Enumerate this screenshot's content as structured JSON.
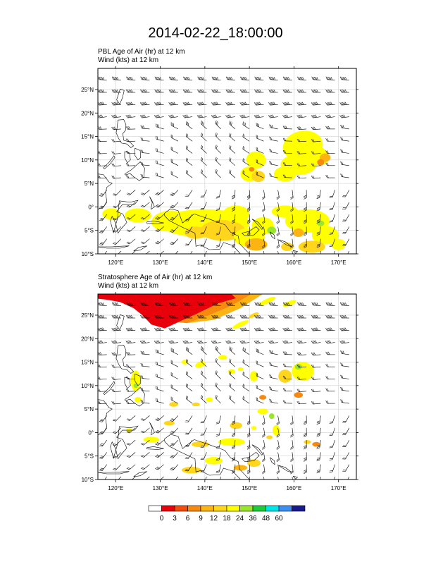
{
  "title": "2014-02-22_18:00:00",
  "panels": [
    {
      "id": "pbl",
      "label_line1": "PBL Age of Air   (hr)     at   12 km",
      "label_line2": "Wind    (kts)     at   12 km"
    },
    {
      "id": "strat",
      "label_line1": "Stratosphere Age of Air   (hr)     at   12 km",
      "label_line2": "Wind    (kts)     at   12 km"
    }
  ],
  "map_extent": {
    "lon": [
      116,
      174
    ],
    "lat": [
      -10,
      29.5
    ]
  },
  "lon_ticks": [
    {
      "value": 120,
      "label": "120°E"
    },
    {
      "value": 130,
      "label": "130°E"
    },
    {
      "value": 140,
      "label": "140°E"
    },
    {
      "value": 150,
      "label": "150°E"
    },
    {
      "value": 160,
      "label": "160°E"
    },
    {
      "value": 170,
      "label": "170°E"
    }
  ],
  "lat_ticks": [
    {
      "value": 25,
      "label": "25°N"
    },
    {
      "value": 20,
      "label": "20°N"
    },
    {
      "value": 15,
      "label": "15°N"
    },
    {
      "value": 10,
      "label": "10°N"
    },
    {
      "value": 5,
      "label": "5°N"
    },
    {
      "value": 0,
      "label": "0°"
    },
    {
      "value": -5,
      "label": "5°S"
    },
    {
      "value": -10,
      "label": "10°S"
    }
  ],
  "colorbar": {
    "colors": [
      "#ffffff",
      "#e8000b",
      "#f24d0c",
      "#f7890e",
      "#fbb412",
      "#ffd61b",
      "#ffff00",
      "#9ae62e",
      "#1ecb3a",
      "#00e5e5",
      "#3c8ff0",
      "#1a1a8c"
    ],
    "labels": [
      "0",
      "3",
      "6",
      "9",
      "12",
      "18",
      "24",
      "36",
      "48",
      "60"
    ]
  },
  "colors": {
    "yellow": "#ffff00",
    "gold": "#ffd61b",
    "orange": "#fbb412",
    "dark_orange": "#f7890e",
    "red": "#e8000b",
    "green": "#9ae62e",
    "grid": "#d0d0d0",
    "coast": "#000000"
  },
  "wind_barbs": "wind-barb-icons"
}
